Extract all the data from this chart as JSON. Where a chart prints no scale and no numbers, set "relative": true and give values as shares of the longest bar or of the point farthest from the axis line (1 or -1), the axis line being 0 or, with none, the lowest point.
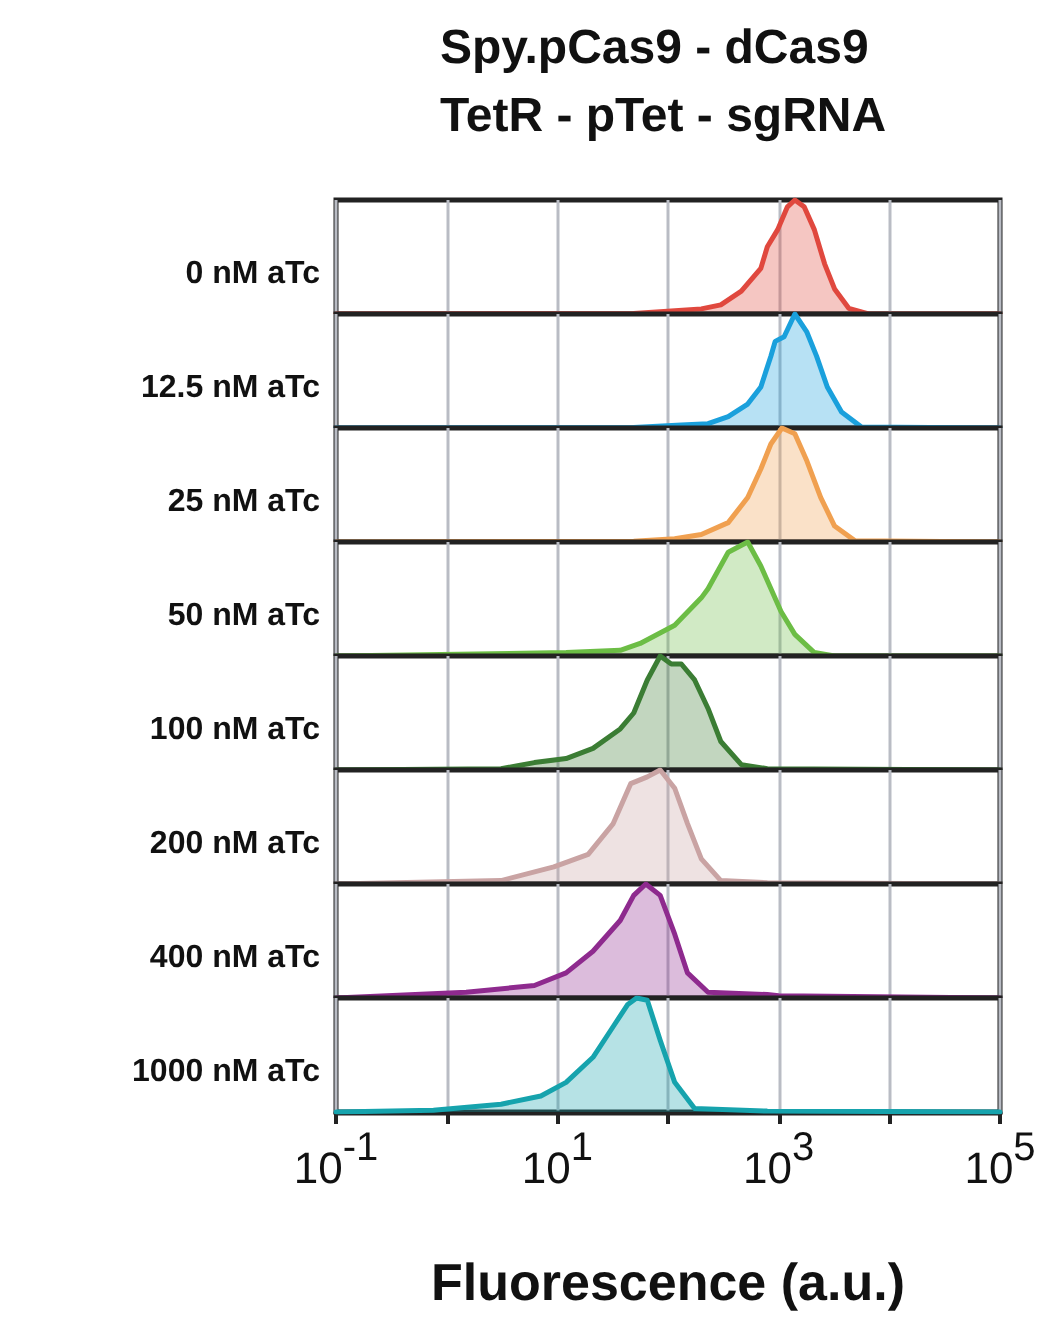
{
  "chart_data": [
    {
      "type": "area",
      "title": "Spy.pCas9 - dCas9\nTetR - pTet - sgRNA",
      "ylabel": "0 nM aTc",
      "relative": true,
      "log": "x",
      "grid": "x",
      "tick_labels": false,
      "xlim": [
        0.1,
        100000
      ],
      "xticks": [
        {
          "value": 0.1,
          "label": null
        },
        {
          "value": 1,
          "label": null
        },
        {
          "value": 10,
          "label": null
        },
        {
          "value": 100,
          "label": null
        },
        {
          "value": 1000,
          "label": null
        },
        {
          "value": 10000,
          "label": null
        },
        {
          "value": 100000,
          "label": null
        }
      ],
      "series": [
        {
          "color": "#e0483e",
          "x": [
            0.1,
            49,
            200,
            300,
            460,
            690,
            790,
            980,
            1200,
            1400,
            1700,
            2100,
            2600,
            3200,
            4300,
            6500,
            100000
          ],
          "values": [
            0,
            0.004,
            0.045,
            0.08,
            0.2,
            0.4,
            0.59,
            0.74,
            0.94,
            1,
            0.94,
            0.74,
            0.44,
            0.22,
            0.05,
            0,
            0
          ]
        }
      ]
    },
    {
      "type": "area",
      "ylabel": "12.5 nM aTc",
      "relative": true,
      "log": "x",
      "grid": "x",
      "tick_labels": false,
      "xlim": [
        0.1,
        100000
      ],
      "xticks": [
        {
          "value": 0.1,
          "label": null
        },
        {
          "value": 1,
          "label": null
        },
        {
          "value": 10,
          "label": null
        },
        {
          "value": 100,
          "label": null
        },
        {
          "value": 1000,
          "label": null
        },
        {
          "value": 10000,
          "label": null
        },
        {
          "value": 100000,
          "label": null
        }
      ],
      "series": [
        {
          "color": "#1aa0dc",
          "x": [
            0.1,
            49,
            132,
            230,
            350,
            525,
            690,
            850,
            930,
            1120,
            1400,
            1800,
            2200,
            2750,
            3700,
            5600,
            100000
          ],
          "values": [
            0,
            0.004,
            0.026,
            0.038,
            0.1,
            0.21,
            0.36,
            0.63,
            0.76,
            0.8,
            1,
            0.84,
            0.63,
            0.36,
            0.14,
            0.008,
            0
          ]
        }
      ]
    },
    {
      "type": "area",
      "ylabel": "25 nM aTc",
      "relative": true,
      "log": "x",
      "grid": "x",
      "tick_labels": false,
      "xlim": [
        0.1,
        100000
      ],
      "xticks": [
        {
          "value": 0.1,
          "label": null
        },
        {
          "value": 1,
          "label": null
        },
        {
          "value": 10,
          "label": null
        },
        {
          "value": 100,
          "label": null
        },
        {
          "value": 1000,
          "label": null
        },
        {
          "value": 10000,
          "label": null
        },
        {
          "value": 100000,
          "label": null
        }
      ],
      "series": [
        {
          "color": "#f0a050",
          "x": [
            0.1,
            49,
            115,
            200,
            350,
            525,
            690,
            850,
            1070,
            1400,
            1800,
            2400,
            3200,
            4900,
            100000
          ],
          "values": [
            0,
            0.007,
            0.029,
            0.065,
            0.17,
            0.39,
            0.64,
            0.86,
            1,
            0.95,
            0.71,
            0.39,
            0.14,
            0.011,
            0
          ]
        }
      ]
    },
    {
      "type": "area",
      "ylabel": "50 nM aTc",
      "relative": true,
      "log": "x",
      "grid": "x",
      "tick_labels": false,
      "xlim": [
        0.1,
        100000
      ],
      "xticks": [
        {
          "value": 0.1,
          "label": null
        },
        {
          "value": 1,
          "label": null
        },
        {
          "value": 10,
          "label": null
        },
        {
          "value": 100,
          "label": null
        },
        {
          "value": 1000,
          "label": null
        },
        {
          "value": 10000,
          "label": null
        },
        {
          "value": 100000,
          "label": null
        }
      ],
      "series": [
        {
          "color": "#6cbd45",
          "x": [
            0.1,
            12,
            37,
            56,
            115,
            200,
            230,
            350,
            525,
            690,
            1050,
            1400,
            2100,
            3200,
            100000
          ],
          "values": [
            0,
            0.03,
            0.05,
            0.11,
            0.27,
            0.51,
            0.59,
            0.91,
            1,
            0.79,
            0.39,
            0.19,
            0.03,
            0,
            0
          ]
        }
      ]
    },
    {
      "type": "area",
      "ylabel": "100 nM aTc",
      "relative": true,
      "log": "x",
      "grid": "x",
      "tick_labels": false,
      "xlim": [
        0.1,
        100000
      ],
      "xticks": [
        {
          "value": 0.1,
          "label": null
        },
        {
          "value": 1,
          "label": null
        },
        {
          "value": 10,
          "label": null
        },
        {
          "value": 100,
          "label": null
        },
        {
          "value": 1000,
          "label": null
        },
        {
          "value": 10000,
          "label": null
        },
        {
          "value": 100000,
          "label": null
        }
      ],
      "series": [
        {
          "color": "#3b7d34",
          "x": [
            0.1,
            3.1,
            6.2,
            12,
            21,
            37,
            49,
            65,
            85,
            107,
            132,
            174,
            230,
            300,
            460,
            790,
            100000
          ],
          "values": [
            0,
            0.011,
            0.065,
            0.1,
            0.19,
            0.36,
            0.5,
            0.79,
            1,
            0.93,
            0.93,
            0.79,
            0.54,
            0.25,
            0.047,
            0.011,
            0
          ]
        }
      ]
    },
    {
      "type": "area",
      "ylabel": "200 nM aTc",
      "relative": true,
      "log": "x",
      "grid": "x",
      "tick_labels": false,
      "xlim": [
        0.1,
        100000
      ],
      "xticks": [
        {
          "value": 0.1,
          "label": null
        },
        {
          "value": 1,
          "label": null
        },
        {
          "value": 10,
          "label": null
        },
        {
          "value": 100,
          "label": null
        },
        {
          "value": 1000,
          "label": null
        },
        {
          "value": 10000,
          "label": null
        },
        {
          "value": 100000,
          "label": null
        }
      ],
      "series": [
        {
          "color": "#c9a3a3",
          "x": [
            0.1,
            3.1,
            9.3,
            19,
            32,
            46,
            65,
            85,
            115,
            150,
            200,
            300,
            790,
            100000
          ],
          "values": [
            0,
            0.03,
            0.15,
            0.26,
            0.53,
            0.88,
            0.94,
            1,
            0.84,
            0.53,
            0.22,
            0.03,
            0.012,
            0
          ]
        }
      ]
    },
    {
      "type": "area",
      "ylabel": "400 nM aTc",
      "relative": true,
      "log": "x",
      "grid": "x",
      "tick_labels": false,
      "xlim": [
        0.1,
        100000
      ],
      "xticks": [
        {
          "value": 0.1,
          "label": null
        },
        {
          "value": 1,
          "label": null
        },
        {
          "value": 10,
          "label": null
        },
        {
          "value": 100,
          "label": null
        },
        {
          "value": 1000,
          "label": null
        },
        {
          "value": 10000,
          "label": null
        },
        {
          "value": 100000,
          "label": null
        }
      ],
      "series": [
        {
          "color": "#8e2a8e",
          "x": [
            0.1,
            1.5,
            6.2,
            12,
            21,
            37,
            49,
            63,
            85,
            115,
            150,
            230,
            790,
            1000,
            100000
          ],
          "values": [
            0,
            0.05,
            0.11,
            0.22,
            0.41,
            0.68,
            0.9,
            1,
            0.9,
            0.56,
            0.22,
            0.05,
            0.03,
            0.02,
            0
          ]
        }
      ]
    },
    {
      "type": "area",
      "ylabel": "1000 nM aTc",
      "xlabel": "Fluorescence (a.u.)",
      "relative": true,
      "log": "x",
      "grid": "x",
      "tick_labels": "x",
      "xlim": [
        0.1,
        100000
      ],
      "xticks": [
        {
          "value": 0.1,
          "label": "10$^{-1}$"
        },
        {
          "value": 1,
          "label": null
        },
        {
          "value": 10,
          "label": "10$^{1}$"
        },
        {
          "value": 100,
          "label": null
        },
        {
          "value": 1000,
          "label": "10$^{3}$"
        },
        {
          "value": 10000,
          "label": null
        },
        {
          "value": 100000,
          "label": "10$^{5}$"
        }
      ],
      "series": [
        {
          "color": "#16a3ad",
          "x": [
            0.1,
            0.76,
            3.1,
            7.1,
            12,
            21,
            32,
            43,
            52,
            65,
            85,
            115,
            174,
            790,
            100000
          ],
          "values": [
            0,
            0.015,
            0.068,
            0.14,
            0.26,
            0.48,
            0.75,
            0.94,
            1,
            0.98,
            0.63,
            0.26,
            0.03,
            0.008,
            0
          ]
        }
      ]
    }
  ]
}
